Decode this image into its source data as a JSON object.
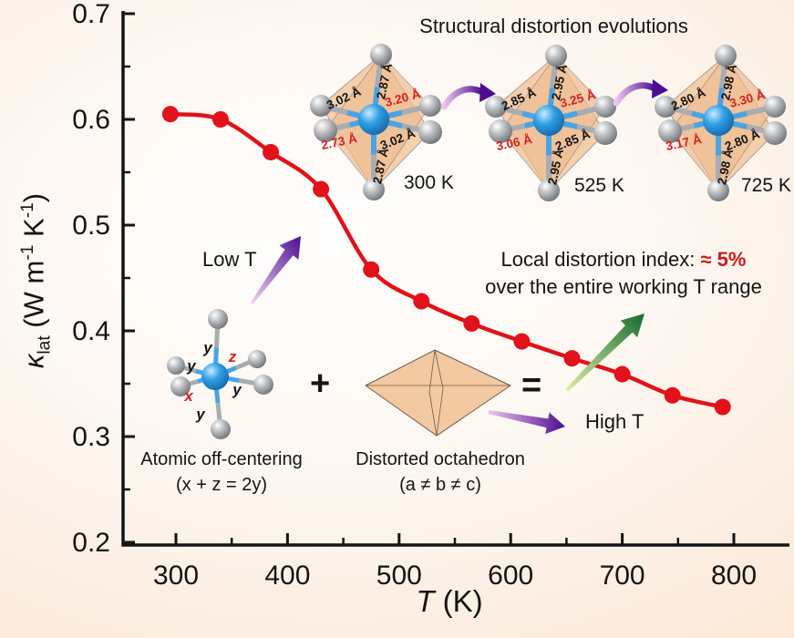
{
  "title_annotation": "Structural distortion evolutions",
  "chart_data": {
    "type": "line",
    "x_label": "T (K)",
    "y_label": "kappa_lat (W m^-1 K^-1)",
    "series": [
      {
        "name": "kappa_lat",
        "x": [
          295,
          340,
          385,
          430,
          475,
          520,
          565,
          610,
          655,
          700,
          745,
          790
        ],
        "values": [
          0.605,
          0.6,
          0.569,
          0.534,
          0.458,
          0.428,
          0.407,
          0.39,
          0.374,
          0.359,
          0.339,
          0.328
        ]
      }
    ],
    "xlim": [
      252,
      850
    ],
    "ylim": [
      0.2,
      0.7
    ],
    "x_ticks": [
      300,
      400,
      500,
      600,
      700,
      800
    ],
    "x_minor_ticks": [
      350,
      450,
      550,
      650,
      750,
      850
    ],
    "y_ticks": [
      0.2,
      0.3,
      0.4,
      0.5,
      0.6,
      0.7
    ],
    "y_minor_ticks": [
      0.25,
      0.35,
      0.45,
      0.55,
      0.65
    ],
    "grid": false,
    "legend": "none",
    "line_color": "#e11219",
    "marker": "circle"
  },
  "axis_labels": {
    "x_italic": "T",
    "x_rest": " (K)",
    "y_symbol": "κ",
    "y_sub": "lat",
    "y_p1": " (W m",
    "y_e1": "-1",
    "y_p2": " K",
    "y_e2": "-1",
    "y_p3": ")"
  },
  "octahedra": [
    {
      "temp": "300 K",
      "bonds": {
        "upper_left": "3.02 Å",
        "top": "2.87 Å",
        "right": "3.20 Å",
        "lower_left": "2.73 Å",
        "lower_right": "3.02 Å",
        "bottom": "2.87 Å"
      }
    },
    {
      "temp": "525 K",
      "bonds": {
        "upper_left": "2.85 Å",
        "top": "2.95 Å",
        "right": "3.25 Å",
        "lower_left": "3.06 Å",
        "lower_right": "2.85 Å",
        "bottom": "2.95 Å"
      }
    },
    {
      "temp": "725 K",
      "bonds": {
        "upper_left": "2.80 Å",
        "top": "2.98 Å",
        "right": "3.30 Å",
        "lower_left": "3.17 Å",
        "lower_right": "2.80 Å",
        "bottom": "2.98 Å"
      }
    }
  ],
  "molecule_labels": {
    "top": "y",
    "left": "y",
    "z": "z",
    "x": "x",
    "right": "y",
    "bottom": "y"
  },
  "annotations": {
    "low_t": "Low T",
    "high_t": "High T",
    "index_black": "Local distortion index: ",
    "index_red": "≈ 5%",
    "index_line2": "over the entire working T range",
    "plus": "+",
    "equals": "=",
    "offcenter_caption": "Atomic off-centering",
    "offcenter_formula": "(x + z = 2y)",
    "distorted_caption": "Distorted octahedron",
    "distorted_formula": "(a ≠ b ≠ c)"
  },
  "colors": {
    "curve": "#e11219",
    "red_label": "#d42020",
    "purple_dark": "#53109b",
    "purple_light": "#efc4ec",
    "green_dark": "#1e7a33",
    "green_light": "#d7eda0",
    "face_fill": "#f3c9a2",
    "atom_blue": "#2e9fe6",
    "atom_gray": "#9a9a9a"
  }
}
